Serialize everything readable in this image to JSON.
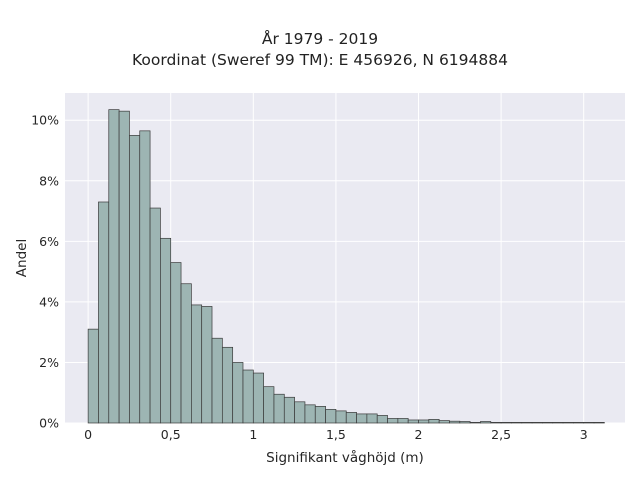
{
  "chart_data": {
    "type": "bar",
    "title": [
      "År 1979 - 2019",
      "Koordinat (Sweref 99 TM): E 456926, N 6194884"
    ],
    "xlabel": "Signifikant våghöjd (m)",
    "ylabel": "Andel",
    "xlim": [
      -0.14,
      3.25
    ],
    "ylim": [
      0,
      0.109
    ],
    "x_ticks": [
      0,
      0.5,
      1,
      1.5,
      2,
      2.5,
      3
    ],
    "x_tick_labels": [
      "0",
      "0,5",
      "1",
      "1,5",
      "2",
      "2,5",
      "3"
    ],
    "y_ticks": [
      0,
      0.02,
      0.04,
      0.06,
      0.08,
      0.1
    ],
    "y_tick_labels": [
      "0%",
      "2%",
      "4%",
      "6%",
      "8%",
      "10%"
    ],
    "grid": true,
    "background": "#eaeaf2",
    "bar_fill": "#9db5b3",
    "bar_edge": "#3a3a3a",
    "bin_width": 0.0625,
    "bin_starts": [
      0,
      0.0625,
      0.125,
      0.1875,
      0.25,
      0.3125,
      0.375,
      0.4375,
      0.5,
      0.5625,
      0.625,
      0.6875,
      0.75,
      0.8125,
      0.875,
      0.9375,
      1.0,
      1.0625,
      1.125,
      1.1875,
      1.25,
      1.3125,
      1.375,
      1.4375,
      1.5,
      1.5625,
      1.625,
      1.6875,
      1.75,
      1.8125,
      1.875,
      1.9375,
      2.0,
      2.0625,
      2.125,
      2.1875,
      2.25,
      2.3125,
      2.375,
      2.4375,
      2.5,
      2.5625,
      2.625,
      2.6875,
      2.75,
      2.8125,
      2.875,
      2.9375,
      3.0,
      3.0625
    ],
    "values": [
      0.031,
      0.073,
      0.1035,
      0.103,
      0.095,
      0.0965,
      0.071,
      0.061,
      0.053,
      0.046,
      0.039,
      0.0385,
      0.028,
      0.025,
      0.02,
      0.0175,
      0.0165,
      0.012,
      0.0095,
      0.0085,
      0.007,
      0.006,
      0.0055,
      0.0045,
      0.004,
      0.0035,
      0.003,
      0.003,
      0.0025,
      0.0015,
      0.0015,
      0.001,
      0.001,
      0.0012,
      0.0008,
      0.0006,
      0.0005,
      0.0002,
      0.0005,
      0.0002,
      0.0002,
      0.0002,
      0.0002,
      0.0002,
      0.0002,
      0.0002,
      0.0002,
      0.0002,
      0.0002,
      0.0002
    ]
  }
}
